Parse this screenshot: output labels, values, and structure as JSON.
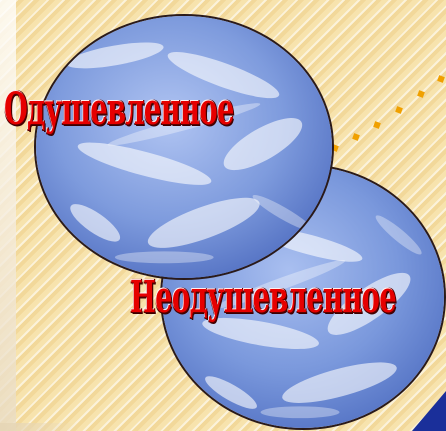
{
  "words": {
    "animate": "Одушевленное",
    "inanimate": "Неодушевленное"
  },
  "colors": {
    "background": "#f7e3ad",
    "dots": "#f0a000",
    "text": "#e60000",
    "globe": "#7f9fe0",
    "corner_accent": "#1a2f9a"
  },
  "icons": [
    "earth-globe-image",
    "earth-globe-image"
  ]
}
